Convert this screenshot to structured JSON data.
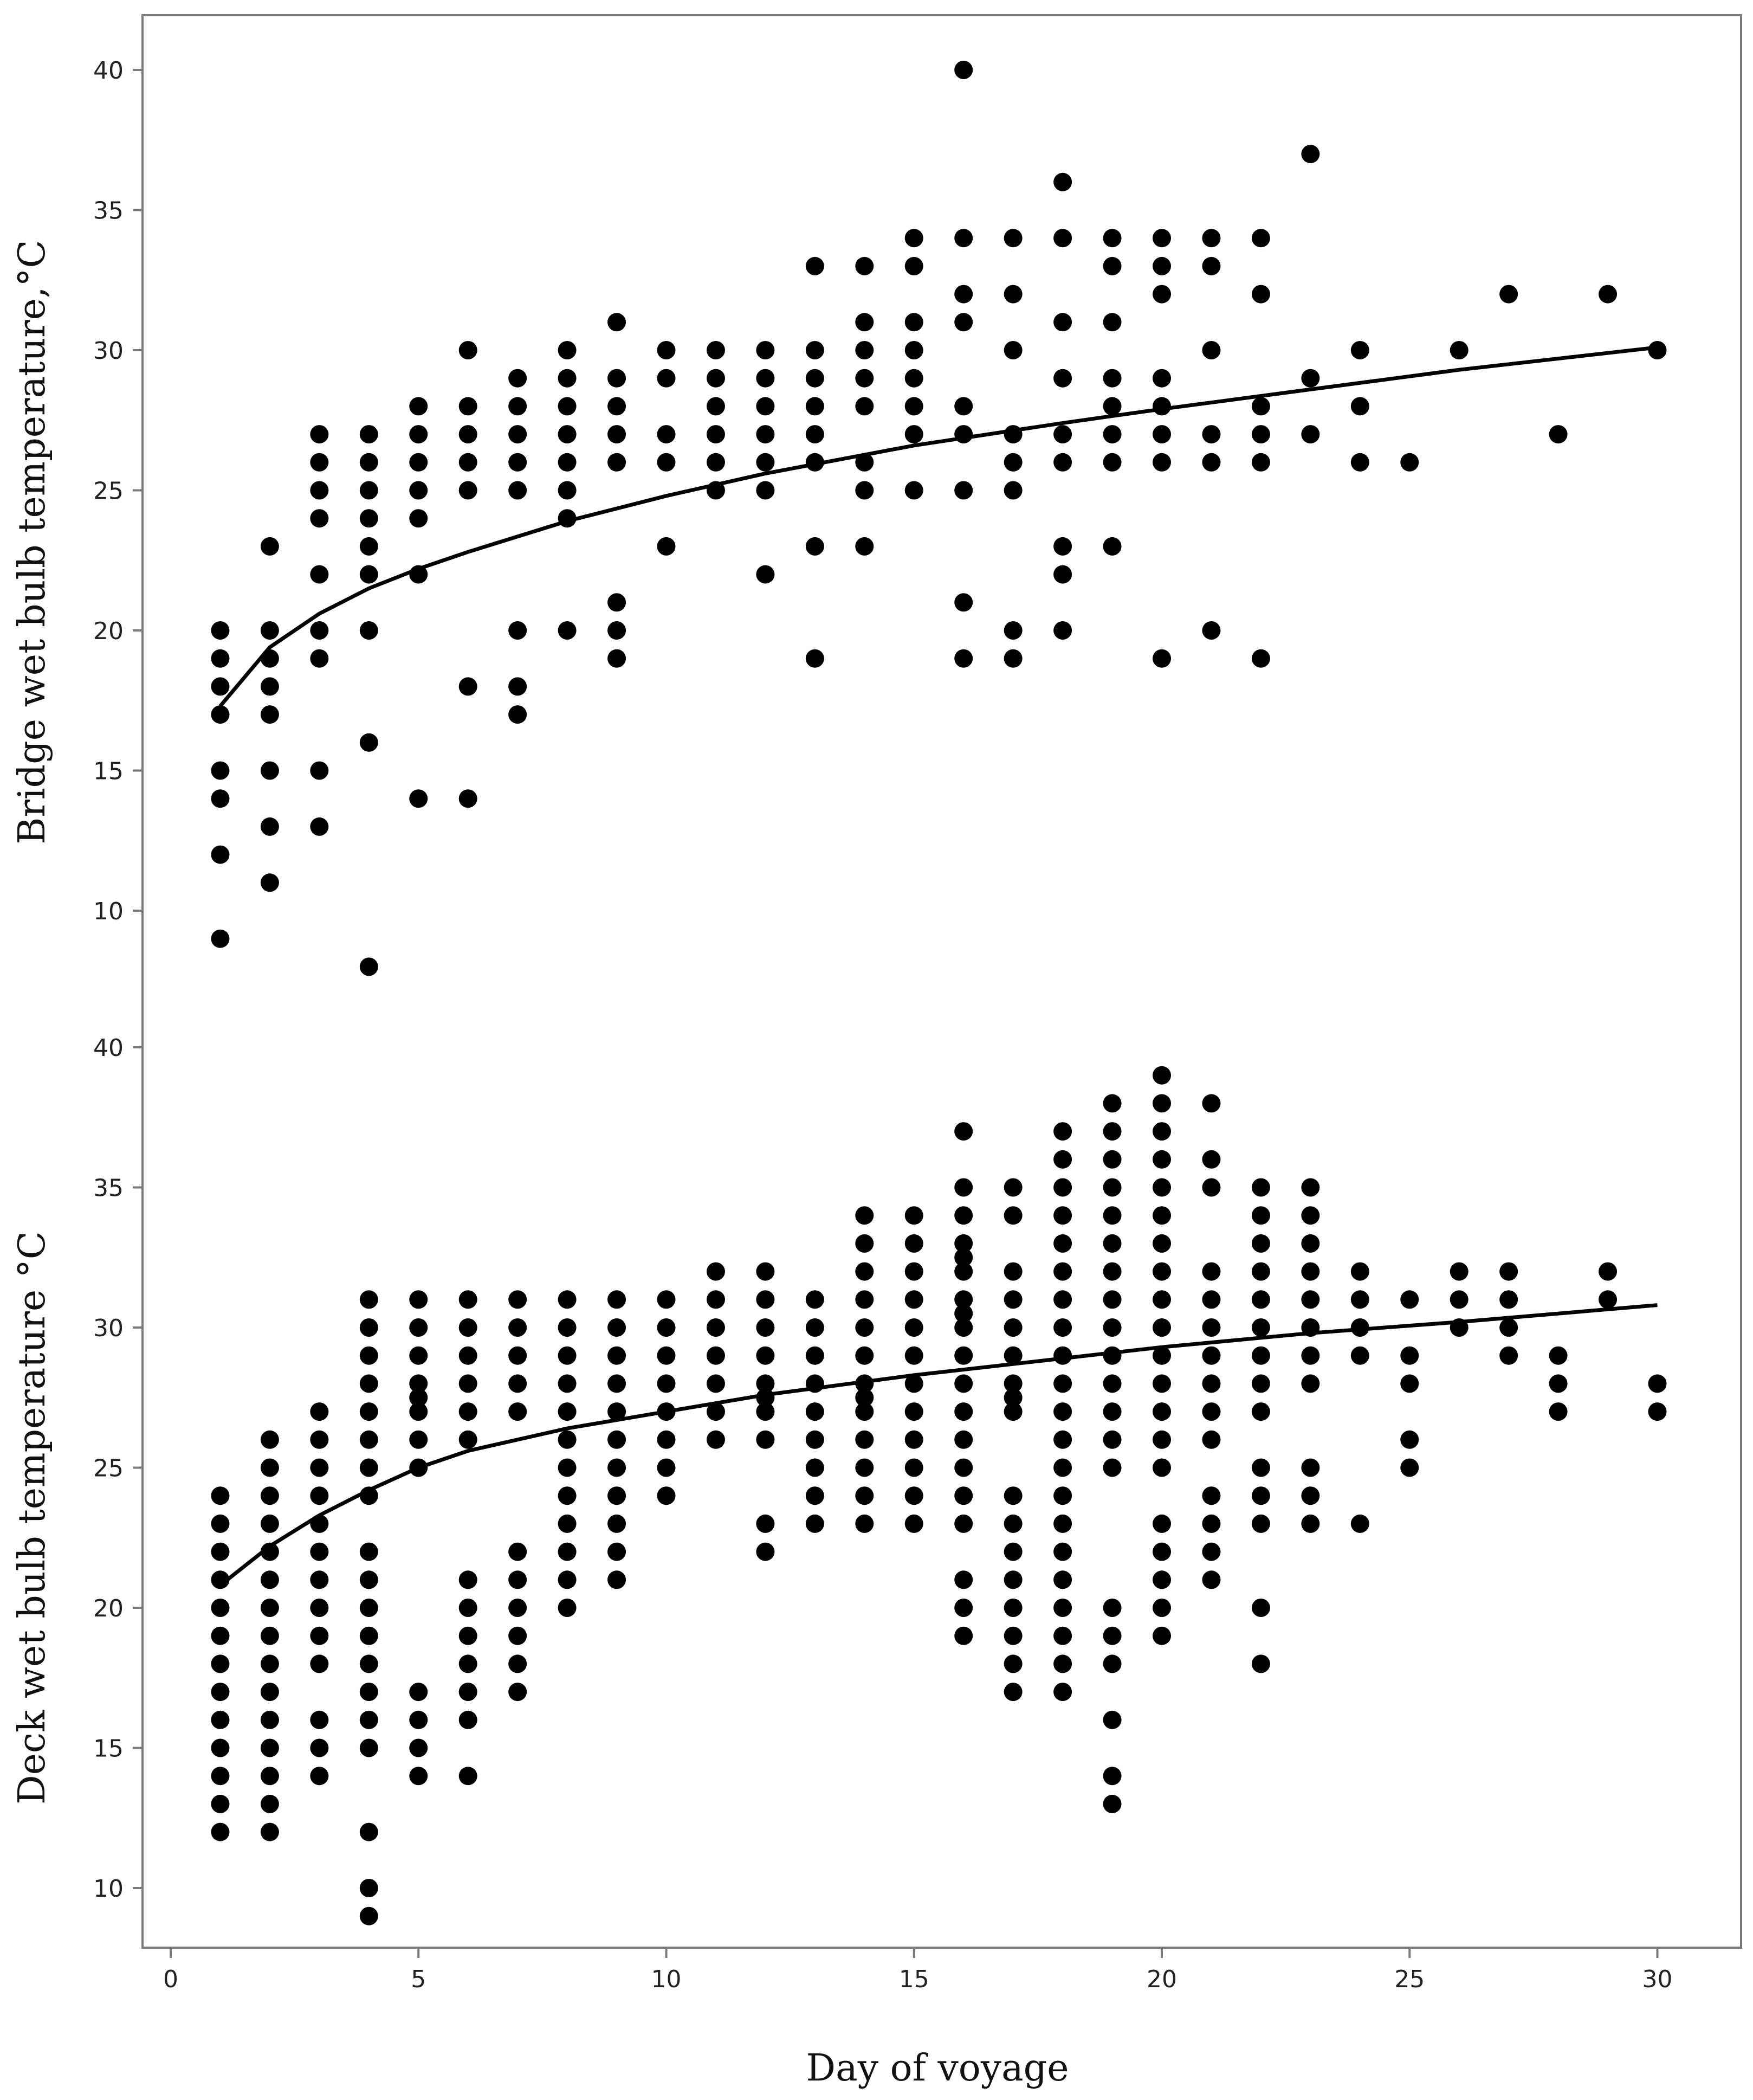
{
  "chart_data": [
    {
      "type": "scatter",
      "panel": "top",
      "ylabel": "Bridge wet bulb temperature,°C",
      "xlim": [
        0,
        30
      ],
      "ylim": [
        10,
        40
      ],
      "yticks": [
        10,
        15,
        20,
        25,
        30,
        35,
        40
      ],
      "grid": false,
      "legend": "none",
      "marker_color": "#000000",
      "points": {
        "1": [
          9,
          12,
          14,
          15,
          17,
          18,
          19,
          20
        ],
        "2": [
          11,
          13,
          15,
          17,
          18,
          19,
          20,
          23
        ],
        "3": [
          13,
          15,
          19,
          20,
          22,
          24,
          25,
          26,
          27
        ],
        "4": [
          8,
          16,
          20,
          22,
          23,
          24,
          25,
          26,
          27
        ],
        "5": [
          14,
          22,
          24,
          25,
          26,
          27,
          28
        ],
        "6": [
          14,
          18,
          25,
          26,
          27,
          28,
          30
        ],
        "7": [
          17,
          18,
          20,
          25,
          26,
          27,
          28,
          29
        ],
        "8": [
          20,
          24,
          25,
          26,
          27,
          28,
          29,
          30
        ],
        "9": [
          19,
          20,
          21,
          26,
          27,
          28,
          29,
          31
        ],
        "10": [
          23,
          26,
          27,
          29,
          30
        ],
        "11": [
          25,
          26,
          27,
          28,
          29,
          30
        ],
        "12": [
          22,
          25,
          26,
          27,
          28,
          29,
          30
        ],
        "13": [
          19,
          23,
          26,
          27,
          28,
          29,
          30,
          33
        ],
        "14": [
          23,
          25,
          26,
          28,
          29,
          30,
          31,
          33
        ],
        "15": [
          25,
          27,
          28,
          29,
          30,
          31,
          33,
          34
        ],
        "16": [
          19,
          21,
          25,
          27,
          28,
          31,
          32,
          34,
          40
        ],
        "17": [
          19,
          20,
          25,
          26,
          27,
          30,
          32,
          34
        ],
        "18": [
          20,
          22,
          23,
          26,
          27,
          29,
          31,
          34,
          36
        ],
        "19": [
          23,
          26,
          27,
          28,
          29,
          31,
          33,
          34
        ],
        "20": [
          19,
          26,
          27,
          28,
          29,
          32,
          33,
          34
        ],
        "21": [
          20,
          26,
          27,
          30,
          33,
          34
        ],
        "22": [
          19,
          26,
          27,
          28,
          32,
          34
        ],
        "23": [
          27,
          29,
          37
        ],
        "24": [
          26,
          28,
          30
        ],
        "25": [
          26
        ],
        "26": [
          30
        ],
        "27": [
          32
        ],
        "28": [
          27
        ],
        "29": [
          32
        ],
        "30": [
          30
        ]
      },
      "fit_line": {
        "x": [
          1,
          2,
          3,
          4,
          5,
          6,
          8,
          10,
          12,
          15,
          18,
          20,
          23,
          26,
          30
        ],
        "y": [
          17.3,
          19.4,
          20.6,
          21.5,
          22.2,
          22.8,
          23.9,
          24.8,
          25.6,
          26.6,
          27.4,
          27.9,
          28.6,
          29.3,
          30.1
        ]
      }
    },
    {
      "type": "scatter",
      "panel": "bottom",
      "xlabel": "Day of voyage",
      "ylabel": "Deck wet bulb temperature °C",
      "xlim": [
        0,
        30
      ],
      "ylim": [
        10,
        40
      ],
      "xticks": [
        0,
        5,
        10,
        15,
        20,
        25,
        30
      ],
      "yticks": [
        10,
        15,
        20,
        25,
        30,
        35,
        40
      ],
      "grid": false,
      "legend": "none",
      "marker_color": "#000000",
      "points": {
        "1": [
          12,
          13,
          14,
          15,
          16,
          17,
          18,
          19,
          20,
          21,
          22,
          23,
          24
        ],
        "2": [
          12,
          13,
          14,
          15,
          16,
          17,
          18,
          19,
          20,
          21,
          22,
          23,
          24,
          25,
          26
        ],
        "3": [
          14,
          15,
          16,
          18,
          19,
          20,
          21,
          22,
          23,
          24,
          25,
          26,
          27
        ],
        "4": [
          9,
          10,
          12,
          15,
          16,
          17,
          18,
          19,
          20,
          21,
          22,
          24,
          25,
          26,
          27,
          28,
          29,
          30,
          31
        ],
        "5": [
          14,
          15,
          16,
          17,
          25,
          26,
          27,
          27.5,
          28,
          29,
          30,
          31
        ],
        "6": [
          14,
          16,
          17,
          18,
          19,
          20,
          21,
          26,
          27,
          28,
          29,
          30,
          31
        ],
        "7": [
          17,
          18,
          19,
          20,
          21,
          22,
          27,
          28,
          29,
          30,
          31
        ],
        "8": [
          20,
          21,
          22,
          23,
          24,
          25,
          26,
          27,
          28,
          29,
          30,
          31
        ],
        "9": [
          21,
          22,
          23,
          24,
          25,
          26,
          27,
          28,
          29,
          30,
          31
        ],
        "10": [
          24,
          25,
          26,
          27,
          28,
          29,
          30,
          31
        ],
        "11": [
          26,
          27,
          28,
          29,
          30,
          31,
          32
        ],
        "12": [
          22,
          23,
          26,
          27,
          27.5,
          28,
          29,
          30,
          31,
          32
        ],
        "13": [
          23,
          24,
          25,
          26,
          27,
          28,
          29,
          30,
          31
        ],
        "14": [
          23,
          24,
          25,
          26,
          27,
          27.5,
          28,
          29,
          30,
          31,
          32,
          33,
          34
        ],
        "15": [
          23,
          24,
          25,
          26,
          27,
          28,
          29,
          30,
          31,
          32,
          33,
          34
        ],
        "16": [
          19,
          20,
          21,
          23,
          24,
          25,
          26,
          27,
          28,
          29,
          30,
          30.5,
          31,
          32,
          32.5,
          33,
          34,
          35,
          37
        ],
        "17": [
          17,
          18,
          19,
          20,
          21,
          22,
          23,
          24,
          27,
          27.5,
          28,
          29,
          30,
          31,
          32,
          34,
          35
        ],
        "18": [
          17,
          18,
          19,
          20,
          21,
          22,
          23,
          24,
          25,
          26,
          27,
          28,
          29,
          30,
          31,
          32,
          33,
          34,
          35,
          36,
          37
        ],
        "19": [
          13,
          14,
          16,
          18,
          19,
          20,
          25,
          26,
          27,
          28,
          29,
          30,
          31,
          32,
          33,
          34,
          35,
          36,
          37,
          38
        ],
        "20": [
          19,
          20,
          21,
          22,
          23,
          25,
          26,
          27,
          28,
          29,
          30,
          31,
          32,
          33,
          34,
          35,
          36,
          37,
          38,
          39
        ],
        "21": [
          21,
          22,
          23,
          24,
          26,
          27,
          28,
          29,
          30,
          31,
          32,
          35,
          36,
          38
        ],
        "22": [
          18,
          20,
          23,
          24,
          25,
          27,
          28,
          29,
          30,
          31,
          32,
          33,
          34,
          35
        ],
        "23": [
          23,
          24,
          25,
          28,
          29,
          30,
          31,
          32,
          33,
          34,
          35
        ],
        "24": [
          23,
          29,
          30,
          31,
          32
        ],
        "25": [
          25,
          26,
          28,
          29,
          31
        ],
        "26": [
          30,
          31,
          32
        ],
        "27": [
          29,
          30,
          31,
          32
        ],
        "28": [
          27,
          28,
          29
        ],
        "29": [
          31,
          32
        ],
        "30": [
          27,
          28
        ]
      },
      "fit_line": {
        "x": [
          1,
          2,
          3,
          4,
          5,
          6,
          8,
          10,
          12,
          15,
          18,
          20,
          23,
          26,
          30
        ],
        "y": [
          20.8,
          22.2,
          23.3,
          24.2,
          25.0,
          25.6,
          26.4,
          27.0,
          27.6,
          28.3,
          28.9,
          29.3,
          29.8,
          30.2,
          30.8
        ]
      }
    }
  ]
}
